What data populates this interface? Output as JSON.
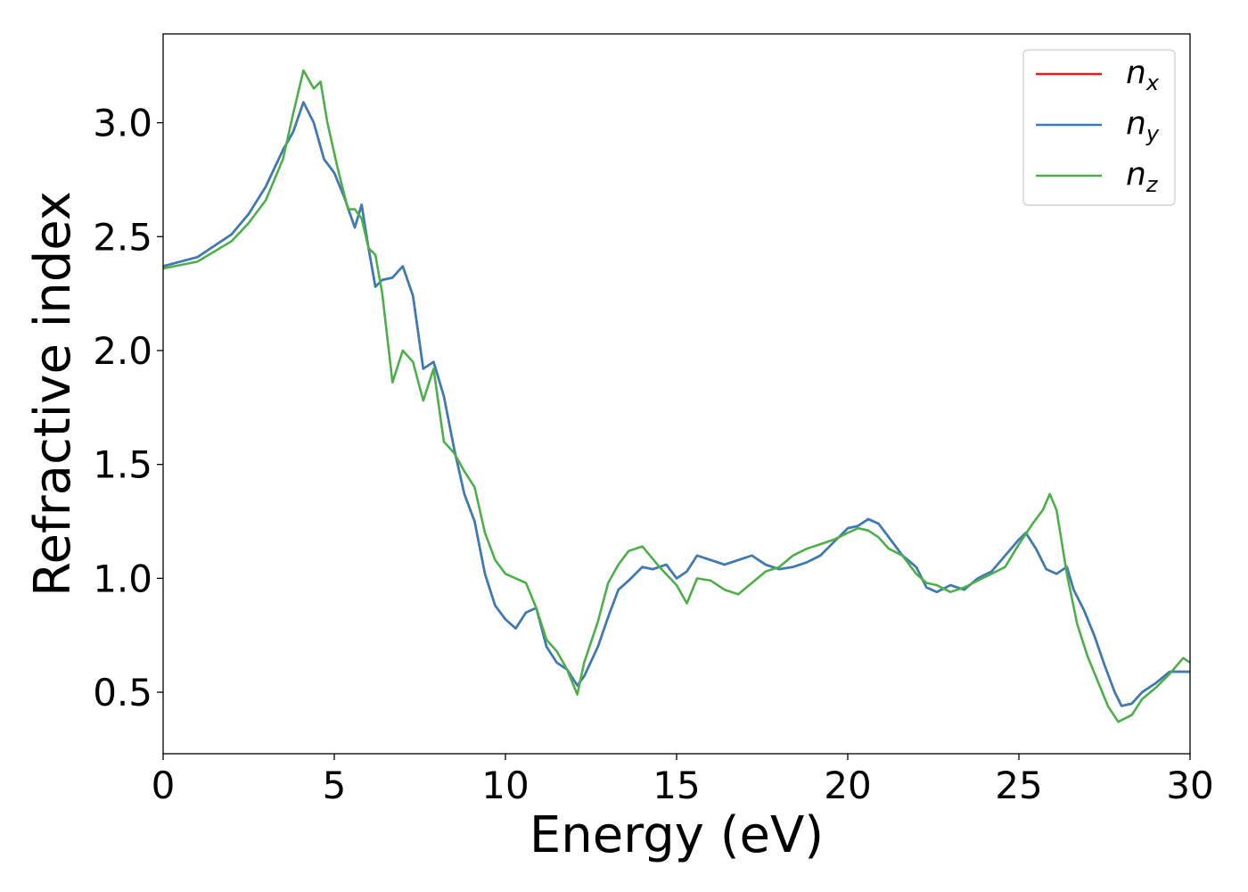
{
  "chart_data": {
    "type": "line",
    "xlabel": "Energy (eV)",
    "ylabel": "Refractive index",
    "xlim": [
      0,
      30
    ],
    "ylim": [
      0.23,
      3.39
    ],
    "xticks": [
      0,
      5,
      10,
      15,
      20,
      25,
      30
    ],
    "yticks": [
      0.5,
      1.0,
      1.5,
      2.0,
      2.5,
      3.0
    ],
    "xtick_labels": [
      "0",
      "5",
      "10",
      "15",
      "20",
      "25",
      "30"
    ],
    "ytick_labels": [
      "0.5",
      "1.0",
      "1.5",
      "2.0",
      "2.5",
      "3.0"
    ],
    "grid": false,
    "legend_position": "top-right",
    "series": [
      {
        "name": "n_x",
        "label_base": "n",
        "label_sub": "x",
        "color": "#e41a1c",
        "x": [
          0,
          1,
          2,
          2.5,
          3,
          3.5,
          3.8,
          4.1,
          4.4,
          4.7,
          5.0,
          5.3,
          5.6,
          5.8,
          6.0,
          6.2,
          6.4,
          6.7,
          7.0,
          7.3,
          7.6,
          7.9,
          8.2,
          8.5,
          8.8,
          9.1,
          9.4,
          9.7,
          10.0,
          10.3,
          10.6,
          10.9,
          11.2,
          11.5,
          11.8,
          12.1,
          12.3,
          12.7,
          13.0,
          13.3,
          13.6,
          14.0,
          14.3,
          14.7,
          15.0,
          15.3,
          15.6,
          16.0,
          16.4,
          16.8,
          17.2,
          17.6,
          18.0,
          18.4,
          18.8,
          19.2,
          19.6,
          20.0,
          20.3,
          20.6,
          20.9,
          21.2,
          21.6,
          22.0,
          22.3,
          22.6,
          23.0,
          23.4,
          23.8,
          24.2,
          24.6,
          25.0,
          25.2,
          25.5,
          25.8,
          26.1,
          26.4,
          26.6,
          26.9,
          27.2,
          27.5,
          27.8,
          28.0,
          28.3,
          28.6,
          29.0,
          29.4,
          29.8,
          30.0
        ],
        "y": [
          2.37,
          2.41,
          2.51,
          2.6,
          2.72,
          2.88,
          2.96,
          3.09,
          3.0,
          2.84,
          2.78,
          2.67,
          2.54,
          2.64,
          2.45,
          2.28,
          2.31,
          2.32,
          2.37,
          2.24,
          1.92,
          1.95,
          1.8,
          1.57,
          1.37,
          1.25,
          1.02,
          0.88,
          0.82,
          0.78,
          0.85,
          0.87,
          0.7,
          0.63,
          0.6,
          0.53,
          0.57,
          0.7,
          0.83,
          0.95,
          0.99,
          1.05,
          1.04,
          1.06,
          1.0,
          1.03,
          1.1,
          1.08,
          1.06,
          1.08,
          1.1,
          1.06,
          1.04,
          1.05,
          1.07,
          1.1,
          1.16,
          1.22,
          1.23,
          1.26,
          1.24,
          1.18,
          1.1,
          1.05,
          0.96,
          0.94,
          0.97,
          0.95,
          1.0,
          1.03,
          1.1,
          1.17,
          1.2,
          1.13,
          1.04,
          1.02,
          1.05,
          0.95,
          0.86,
          0.75,
          0.62,
          0.5,
          0.44,
          0.45,
          0.5,
          0.54,
          0.59,
          0.59,
          0.59
        ]
      },
      {
        "name": "n_y",
        "label_base": "n",
        "label_sub": "y",
        "color": "#377eb8",
        "x": [
          0,
          1,
          2,
          2.5,
          3,
          3.5,
          3.8,
          4.1,
          4.4,
          4.7,
          5.0,
          5.3,
          5.6,
          5.8,
          6.0,
          6.2,
          6.4,
          6.7,
          7.0,
          7.3,
          7.6,
          7.9,
          8.2,
          8.5,
          8.8,
          9.1,
          9.4,
          9.7,
          10.0,
          10.3,
          10.6,
          10.9,
          11.2,
          11.5,
          11.8,
          12.1,
          12.3,
          12.7,
          13.0,
          13.3,
          13.6,
          14.0,
          14.3,
          14.7,
          15.0,
          15.3,
          15.6,
          16.0,
          16.4,
          16.8,
          17.2,
          17.6,
          18.0,
          18.4,
          18.8,
          19.2,
          19.6,
          20.0,
          20.3,
          20.6,
          20.9,
          21.2,
          21.6,
          22.0,
          22.3,
          22.6,
          23.0,
          23.4,
          23.8,
          24.2,
          24.6,
          25.0,
          25.2,
          25.5,
          25.8,
          26.1,
          26.4,
          26.6,
          26.9,
          27.2,
          27.5,
          27.8,
          28.0,
          28.3,
          28.6,
          29.0,
          29.4,
          29.8,
          30.0
        ],
        "y": [
          2.37,
          2.41,
          2.51,
          2.6,
          2.72,
          2.88,
          2.96,
          3.09,
          3.0,
          2.84,
          2.78,
          2.67,
          2.54,
          2.64,
          2.45,
          2.28,
          2.31,
          2.32,
          2.37,
          2.24,
          1.92,
          1.95,
          1.8,
          1.57,
          1.37,
          1.25,
          1.02,
          0.88,
          0.82,
          0.78,
          0.85,
          0.87,
          0.7,
          0.63,
          0.6,
          0.53,
          0.57,
          0.7,
          0.83,
          0.95,
          0.99,
          1.05,
          1.04,
          1.06,
          1.0,
          1.03,
          1.1,
          1.08,
          1.06,
          1.08,
          1.1,
          1.06,
          1.04,
          1.05,
          1.07,
          1.1,
          1.16,
          1.22,
          1.23,
          1.26,
          1.24,
          1.18,
          1.1,
          1.05,
          0.96,
          0.94,
          0.97,
          0.95,
          1.0,
          1.03,
          1.1,
          1.17,
          1.2,
          1.13,
          1.04,
          1.02,
          1.05,
          0.95,
          0.86,
          0.75,
          0.62,
          0.5,
          0.44,
          0.45,
          0.5,
          0.54,
          0.59,
          0.59,
          0.59
        ]
      },
      {
        "name": "n_z",
        "label_base": "n",
        "label_sub": "z",
        "color": "#4daf4a",
        "x": [
          0,
          1,
          2,
          2.5,
          3,
          3.5,
          3.8,
          4.1,
          4.4,
          4.6,
          4.8,
          5.1,
          5.4,
          5.6,
          5.8,
          6.0,
          6.2,
          6.4,
          6.7,
          7.0,
          7.3,
          7.6,
          7.9,
          8.2,
          8.5,
          8.8,
          9.1,
          9.4,
          9.7,
          10.0,
          10.3,
          10.6,
          10.9,
          11.2,
          11.5,
          11.8,
          12.1,
          12.3,
          12.7,
          13.0,
          13.3,
          13.6,
          14.0,
          14.5,
          15.0,
          15.3,
          15.6,
          16.0,
          16.4,
          16.8,
          17.2,
          17.6,
          18.0,
          18.4,
          18.8,
          19.2,
          19.6,
          20.0,
          20.3,
          20.6,
          20.9,
          21.2,
          21.6,
          22.0,
          22.3,
          22.6,
          23.0,
          23.4,
          23.8,
          24.2,
          24.6,
          25.0,
          25.4,
          25.7,
          25.9,
          26.1,
          26.4,
          26.7,
          27.0,
          27.3,
          27.6,
          27.9,
          28.3,
          28.6,
          29.0,
          29.4,
          29.8,
          30.0
        ],
        "y": [
          2.36,
          2.39,
          2.48,
          2.56,
          2.66,
          2.84,
          3.04,
          3.23,
          3.15,
          3.18,
          3.0,
          2.8,
          2.62,
          2.62,
          2.58,
          2.45,
          2.42,
          2.25,
          1.86,
          2.0,
          1.95,
          1.78,
          1.92,
          1.6,
          1.55,
          1.47,
          1.4,
          1.2,
          1.08,
          1.02,
          1.0,
          0.98,
          0.87,
          0.73,
          0.68,
          0.6,
          0.49,
          0.63,
          0.81,
          0.98,
          1.06,
          1.12,
          1.14,
          1.05,
          0.97,
          0.89,
          1.0,
          0.99,
          0.95,
          0.93,
          0.98,
          1.03,
          1.05,
          1.1,
          1.13,
          1.15,
          1.17,
          1.2,
          1.22,
          1.21,
          1.18,
          1.13,
          1.1,
          1.02,
          0.98,
          0.97,
          0.94,
          0.96,
          0.99,
          1.02,
          1.05,
          1.15,
          1.24,
          1.3,
          1.37,
          1.3,
          1.02,
          0.8,
          0.66,
          0.55,
          0.44,
          0.37,
          0.4,
          0.47,
          0.52,
          0.58,
          0.65,
          0.63
        ]
      }
    ]
  }
}
